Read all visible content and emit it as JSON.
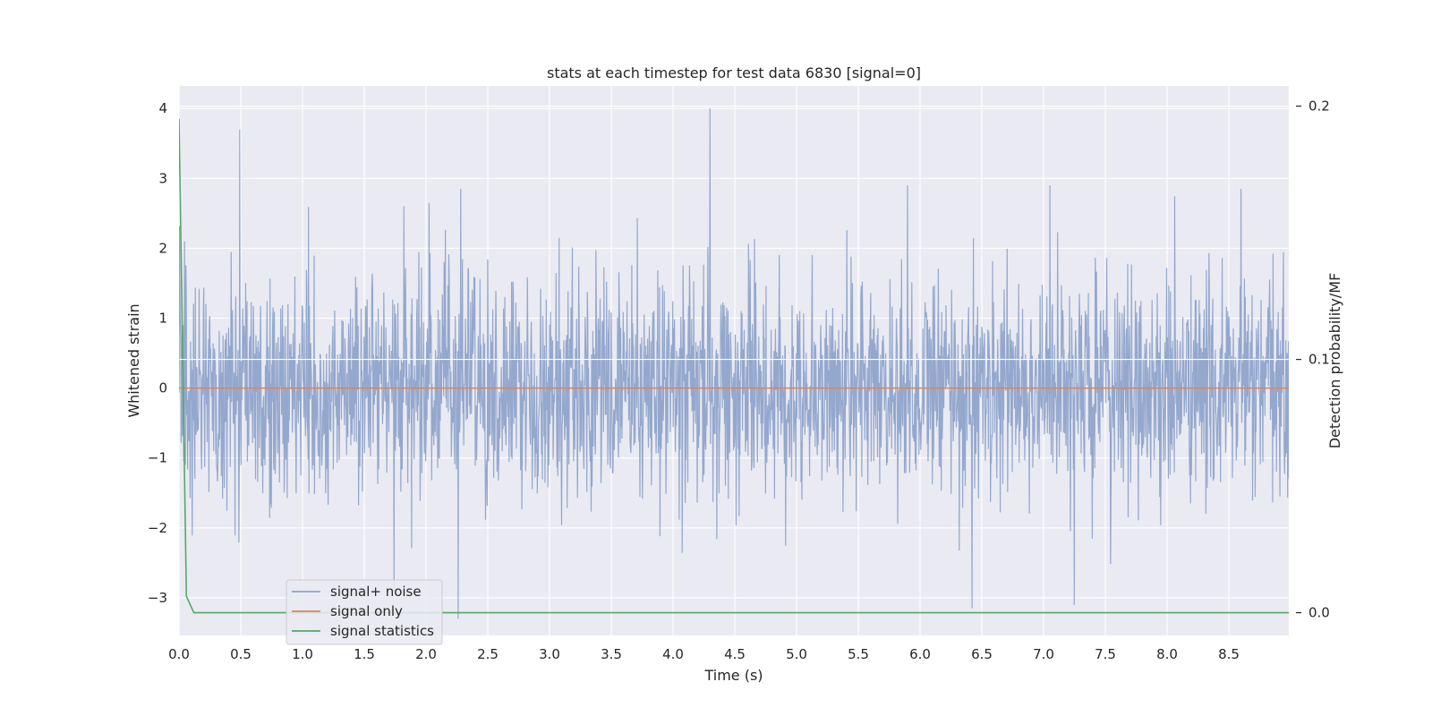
{
  "chart_data": {
    "type": "line",
    "title": "stats at each timestep for test data 6830 [signal=0]",
    "xlabel": "Time (s)",
    "ylabel": "Whitened strain",
    "y2label": "Detection probability/MF",
    "xlim": [
      0.0,
      9.0
    ],
    "ylim": [
      -3.55,
      4.3
    ],
    "y2lim": [
      -0.009,
      0.2053
    ],
    "x_ticks": [
      0.0,
      0.5,
      1.0,
      1.5,
      2.0,
      2.5,
      3.0,
      3.5,
      4.0,
      4.5,
      5.0,
      5.5,
      6.0,
      6.5,
      7.0,
      7.5,
      8.0,
      8.5
    ],
    "x_tick_labels": [
      "0.0",
      "0.5",
      "1.0",
      "1.5",
      "2.0",
      "2.5",
      "3.0",
      "3.5",
      "4.0",
      "4.5",
      "5.0",
      "5.5",
      "6.0",
      "6.5",
      "7.0",
      "7.5",
      "8.0",
      "8.5"
    ],
    "y_ticks": [
      -3,
      -2,
      -1,
      0,
      1,
      2,
      3,
      4
    ],
    "y_tick_labels": [
      "−3",
      "−2",
      "−1",
      "0",
      "1",
      "2",
      "3",
      "4"
    ],
    "y2_ticks": [
      0.0,
      0.1,
      0.2
    ],
    "y2_tick_labels": [
      "0.0",
      "0.1",
      "0.2"
    ],
    "grid": true,
    "legend_position": "lower left",
    "series": [
      {
        "name": "signal+ noise",
        "color": "#8fa4cb",
        "axis": "left",
        "note_values": "dense noise trace; notable peaks listed",
        "peaks": [
          {
            "x": 0.49,
            "y": 3.7
          },
          {
            "x": 4.3,
            "y": 4.0
          },
          {
            "x": 2.26,
            "y": -3.3
          },
          {
            "x": 6.42,
            "y": -3.15
          },
          {
            "x": 7.25,
            "y": -3.1
          },
          {
            "x": 1.74,
            "y": -2.9
          },
          {
            "x": 1.82,
            "y": 2.6
          },
          {
            "x": 2.28,
            "y": 2.85
          },
          {
            "x": 5.9,
            "y": 2.9
          },
          {
            "x": 7.05,
            "y": 2.9
          },
          {
            "x": 8.6,
            "y": 2.85
          }
        ]
      },
      {
        "name": "signal only",
        "color": "#dd8452",
        "axis": "left",
        "x": [
          0.0,
          9.0
        ],
        "y": [
          0.0,
          0.0
        ]
      },
      {
        "name": "signal statistics",
        "color": "#55a868",
        "axis": "right",
        "x": [
          0.0,
          0.06,
          0.12,
          9.0
        ],
        "y": [
          0.195,
          0.0065,
          0.0,
          0.0
        ]
      }
    ]
  }
}
